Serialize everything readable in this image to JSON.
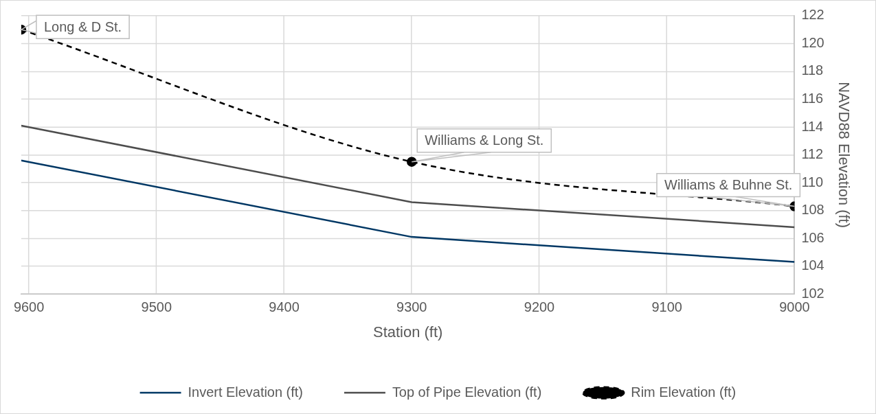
{
  "chart_data": {
    "type": "line",
    "xlabel": "Station (ft)",
    "ylabel": "NAVD88 Elevation (ft)",
    "xlim": [
      9606,
      9000
    ],
    "xticks": [
      9600,
      9500,
      9400,
      9300,
      9200,
      9100,
      9000
    ],
    "ylim": [
      102,
      122
    ],
    "yticks": [
      102,
      104,
      106,
      108,
      110,
      112,
      114,
      116,
      118,
      120,
      122
    ],
    "grid": true,
    "legend": "bottom",
    "series": [
      {
        "name": "Invert Elevation (ft)",
        "color": "#003764",
        "x": [
          9606,
          9300,
          9000
        ],
        "values": [
          111.6,
          106.1,
          104.3
        ],
        "marker": "none",
        "line_style": "solid"
      },
      {
        "name": "Top of Pipe Elevation (ft)",
        "color": "#4d4d4d",
        "x": [
          9606,
          9300,
          9000
        ],
        "values": [
          114.1,
          108.6,
          106.8
        ],
        "marker": "none",
        "line_style": "solid"
      },
      {
        "name": "Rim Elevation (ft)",
        "color": "#000000",
        "x": [
          9606,
          9300,
          9000
        ],
        "values": [
          121,
          111.5,
          108.3
        ],
        "marker": "circle",
        "line_style": "dashed"
      }
    ],
    "annotations": [
      {
        "text": "Long & D St.",
        "x": 9606,
        "y": 121
      },
      {
        "text": "Williams & Long St.",
        "x": 9300,
        "y": 111.5
      },
      {
        "text": "Williams & Buhne St.",
        "x": 9000,
        "y": 108.3
      }
    ]
  }
}
